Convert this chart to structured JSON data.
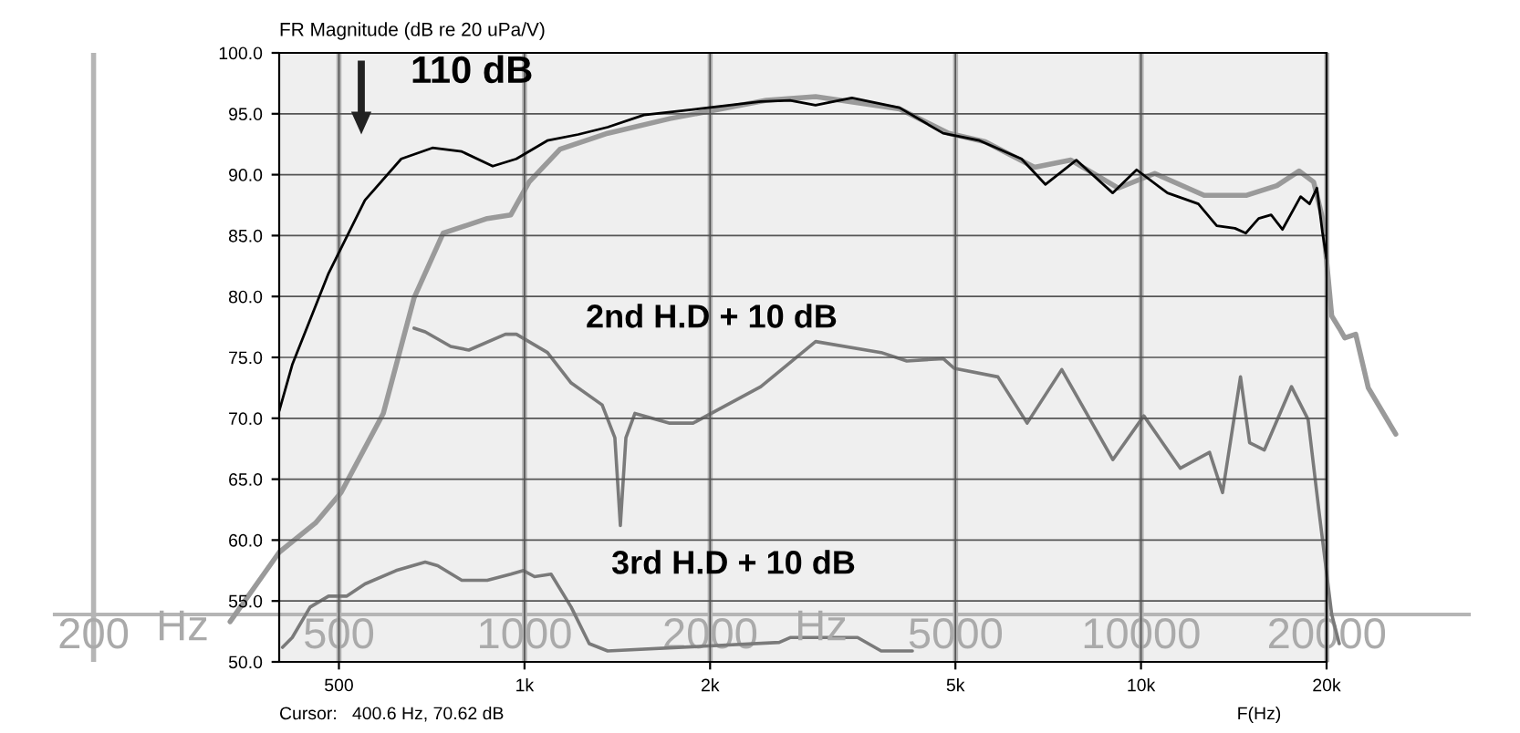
{
  "chart_data": [
    {
      "type": "line",
      "log": "x",
      "xlim": [
        173,
        34000
      ],
      "ylim": [
        50,
        100
      ],
      "tick_labels": "x",
      "grid": true,
      "xticks": [
        200,
        500,
        1000,
        2000,
        5000,
        10000,
        20000
      ],
      "marker": "none",
      "line_style": "solid",
      "series": [
        {
          "color": "#9a9a9a",
          "x": [
            333,
            400,
            458,
            504,
            590,
            662,
            738,
            870,
            950,
            1017,
            1142,
            1364,
            1720,
            2466,
            2965,
            4057,
            4873,
            5585,
            6712,
            7692,
            9183,
            10520,
            12650,
            14790,
            16600,
            18030,
            19040,
            19690,
            20370,
            20950,
            21390,
            22280,
            23350,
            25870
          ],
          "values": [
            53.3,
            59.0,
            61.4,
            63.9,
            70.4,
            79.9,
            85.2,
            86.4,
            86.7,
            89.4,
            92.1,
            93.4,
            94.6,
            96.1,
            96.4,
            95.4,
            93.4,
            92.7,
            90.6,
            91.2,
            88.9,
            90.1,
            88.3,
            88.3,
            89.1,
            90.3,
            89.4,
            86.4,
            78.4,
            77.4,
            76.6,
            76.9,
            72.5,
            68.7
          ]
        },
        {
          "color": "#7a7a7a",
          "x": [
            662,
            690,
            759,
            812,
            931,
            970,
            1089,
            1190,
            1336,
            1401,
            1430,
            1460,
            1510,
            1720,
            1876,
            2416,
            2965,
            3787,
            4168,
            4775,
            4974,
            5856,
            6532,
            7433,
            8995,
            10100,
            11570,
            12910,
            13550,
            14490,
            14990,
            15840,
            17530,
            18650,
            19420,
            20370,
            20950
          ],
          "values": [
            77.4,
            77.1,
            75.9,
            75.6,
            76.9,
            76.9,
            75.4,
            72.9,
            71.1,
            68.4,
            61.2,
            68.4,
            70.4,
            69.6,
            69.6,
            72.6,
            76.3,
            75.4,
            74.7,
            74.9,
            74.1,
            73.4,
            69.6,
            74.0,
            66.6,
            70.2,
            65.9,
            67.2,
            63.9,
            73.4,
            68.0,
            67.4,
            72.6,
            69.9,
            62.4,
            53.9,
            51.5
          ]
        },
        {
          "color": "#7a7a7a",
          "x": [
            405,
            420,
            449,
            481,
            515,
            551,
            619,
            690,
            723,
            791,
            870,
            950,
            996,
            1038,
            1104,
            1190,
            1273,
            1364,
            2588,
            2696,
            3468,
            3787,
            4255
          ],
          "values": [
            51.2,
            52.0,
            54.5,
            55.4,
            55.4,
            56.4,
            57.5,
            58.2,
            57.9,
            56.7,
            56.7,
            57.2,
            57.5,
            57.0,
            57.2,
            54.5,
            51.5,
            50.9,
            51.6,
            52.0,
            52.0,
            50.9,
            50.9
          ]
        }
      ],
      "annotations": [
        "2nd H.D + 10 dB",
        "3rd H.D + 10 dB",
        "Hz",
        "Hz"
      ]
    },
    {
      "type": "line",
      "ylabel": "FR Magnitude (dB re 20 uPa/V)",
      "xlabel": "F(Hz)",
      "log": "x",
      "xlim": [
        400,
        20000
      ],
      "ylim": [
        50,
        100
      ],
      "xticks": [
        500,
        {
          "value": 1000,
          "label": "1k"
        },
        {
          "value": 2000,
          "label": "2k"
        },
        {
          "value": 5000,
          "label": "5k"
        },
        {
          "value": 10000,
          "label": "10k"
        },
        {
          "value": 20000,
          "label": "20k"
        }
      ],
      "yticks": [
        {
          "value": 50,
          "label": "50.0"
        },
        {
          "value": 55,
          "label": "55.0"
        },
        {
          "value": 60,
          "label": "60.0"
        },
        {
          "value": 65,
          "label": "65.0"
        },
        {
          "value": 70,
          "label": "70.0"
        },
        {
          "value": 75,
          "label": "75.0"
        },
        {
          "value": 80,
          "label": "80.0"
        },
        {
          "value": 85,
          "label": "85.0"
        },
        {
          "value": 90,
          "label": "90.0"
        },
        {
          "value": 95,
          "label": "95.0"
        },
        {
          "value": 100,
          "label": "100.0"
        }
      ],
      "grid": true,
      "marker": "none",
      "line_style": "solid",
      "series": [
        {
          "color": "#000000",
          "x": [
            400,
            420,
            481,
            551,
            631,
            709,
            791,
            888,
            970,
            1089,
            1222,
            1364,
            1562,
            1916,
            2152,
            2416,
            2696,
            2965,
            3396,
            4057,
            4775,
            5472,
            6400,
            6997,
            7853,
            8995,
            9838,
            11040,
            12390,
            13270,
            14200,
            14790,
            15520,
            16260,
            16960,
            18150,
            18770,
            19290,
            19690,
            20000
          ],
          "values": [
            70.6,
            74.4,
            81.9,
            87.9,
            91.3,
            92.2,
            91.9,
            90.7,
            91.3,
            92.8,
            93.3,
            93.9,
            94.9,
            95.4,
            95.7,
            96.0,
            96.1,
            95.7,
            96.3,
            95.5,
            93.4,
            92.8,
            91.3,
            89.2,
            91.2,
            88.5,
            90.4,
            88.5,
            87.6,
            85.8,
            85.6,
            85.2,
            86.4,
            86.7,
            85.5,
            88.2,
            87.6,
            88.9,
            85.3,
            83.1
          ]
        }
      ],
      "annotations": [
        "110 dB",
        "Cursor:   400.6 Hz, 70.62 dB"
      ]
    }
  ]
}
